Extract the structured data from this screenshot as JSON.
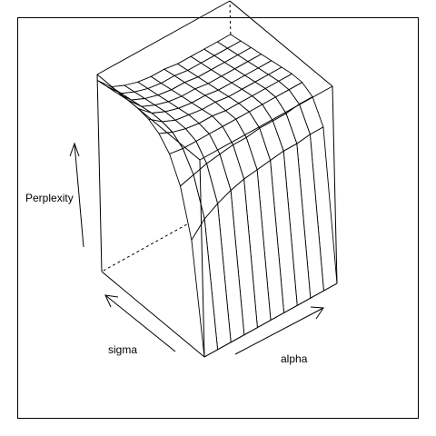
{
  "chart_data": {
    "type": "surface",
    "title": "",
    "xlabel": "alpha",
    "ylabel": "sigma",
    "zlabel": "Perplexity",
    "grid": false,
    "box": true,
    "theta_deg": 35,
    "phi_deg": 20,
    "xlim": [
      0,
      1
    ],
    "ylim": [
      0,
      1
    ],
    "zlim": [
      0,
      1
    ],
    "alpha": [
      0.0,
      0.1,
      0.2,
      0.3,
      0.4,
      0.5,
      0.6,
      0.7,
      0.8,
      0.9,
      1.0
    ],
    "sigma": [
      0.0,
      0.1,
      0.2,
      0.3,
      0.4,
      0.5,
      0.6,
      0.7,
      0.8,
      0.9,
      1.0
    ],
    "z": [
      [
        0.0,
        0.0,
        0.0,
        0.0,
        0.0,
        0.0,
        0.0,
        0.0,
        0.0,
        0.0,
        0.0
      ],
      [
        0.55,
        0.62,
        0.66,
        0.69,
        0.71,
        0.72,
        0.73,
        0.74,
        0.74,
        0.75,
        0.75
      ],
      [
        0.78,
        0.8,
        0.82,
        0.83,
        0.84,
        0.84,
        0.85,
        0.85,
        0.85,
        0.86,
        0.86
      ],
      [
        0.9,
        0.89,
        0.89,
        0.89,
        0.89,
        0.89,
        0.89,
        0.89,
        0.89,
        0.89,
        0.89
      ],
      [
        0.96,
        0.93,
        0.91,
        0.9,
        0.9,
        0.89,
        0.89,
        0.89,
        0.89,
        0.89,
        0.89
      ],
      [
        0.99,
        0.94,
        0.91,
        0.9,
        0.89,
        0.89,
        0.88,
        0.88,
        0.88,
        0.88,
        0.88
      ],
      [
        1.0,
        0.94,
        0.91,
        0.89,
        0.88,
        0.88,
        0.87,
        0.87,
        0.87,
        0.87,
        0.87
      ],
      [
        1.0,
        0.93,
        0.9,
        0.88,
        0.87,
        0.87,
        0.86,
        0.86,
        0.86,
        0.86,
        0.86
      ],
      [
        0.99,
        0.92,
        0.89,
        0.87,
        0.86,
        0.86,
        0.85,
        0.85,
        0.85,
        0.85,
        0.85
      ],
      [
        0.98,
        0.91,
        0.88,
        0.86,
        0.85,
        0.85,
        0.84,
        0.84,
        0.84,
        0.84,
        0.84
      ],
      [
        0.97,
        0.9,
        0.87,
        0.85,
        0.84,
        0.84,
        0.83,
        0.83,
        0.83,
        0.83,
        0.83
      ]
    ]
  }
}
